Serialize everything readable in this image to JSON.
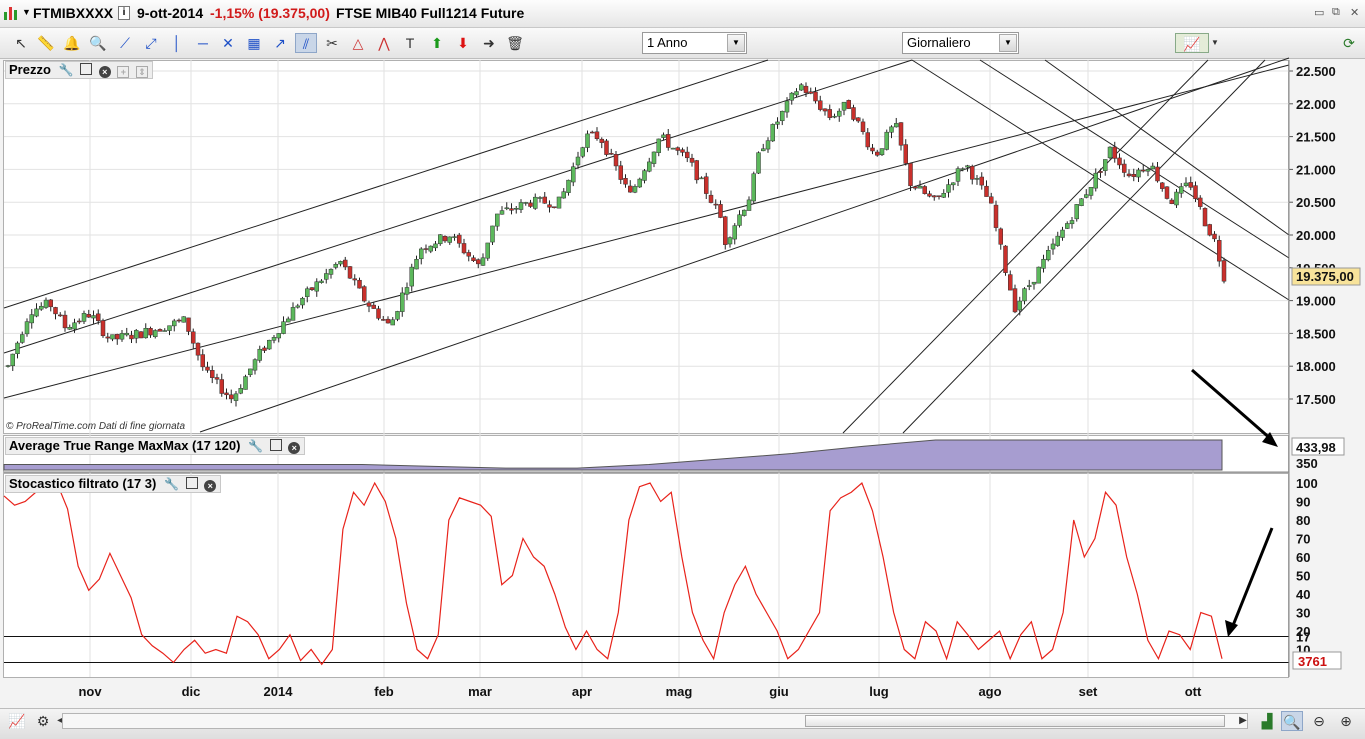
{
  "window": {
    "symbol": "FTMIBXXXX",
    "date": "9-ott-2014",
    "change": "-1,15% (19.375,00)",
    "instrument": "FTSE MIB40 Full1214 Future"
  },
  "toolbar": {
    "period_select": "1 Anno",
    "interval_select": "Giornaliero",
    "tools": [
      "pointer-icon",
      "ruler-icon",
      "alarm-bell-icon",
      "zoom-icon",
      "line-icon",
      "trendline-icon",
      "vertical-line-icon",
      "horizontal-line-icon",
      "fan-icon",
      "grid-icon",
      "arrow-icon",
      "channel-icon",
      "tools-icon",
      "fibonacci-icon",
      "fibonacci-fan-icon",
      "text-icon",
      "arrow-up-icon",
      "arrow-down-icon",
      "arrow-right-icon",
      "trash-icon"
    ]
  },
  "price_panel": {
    "title": "Prezzo",
    "watermark": "© ProRealTime.com  Dati di fine giornata",
    "last_price_label": "19.375,00",
    "y_ticks": [
      "22.500",
      "22.000",
      "21.500",
      "21.000",
      "20.500",
      "20.000",
      "19.500",
      "19.000",
      "18.500",
      "18.000",
      "17.500"
    ]
  },
  "atr_panel": {
    "title": "Average True Range MaxMax (17 120)",
    "last_value_label": "433,98",
    "y_ticks": [
      "350"
    ]
  },
  "stoch_panel": {
    "title": "Stocastico filtrato (17 3)",
    "last_value_label": "3761",
    "y_ticks": [
      "100",
      "90",
      "80",
      "70",
      "60",
      "50",
      "40",
      "30",
      "20",
      "17",
      "10",
      "3"
    ]
  },
  "x_axis": {
    "labels": [
      "nov",
      "dic",
      "2014",
      "feb",
      "mar",
      "apr",
      "mag",
      "giu",
      "lug",
      "ago",
      "set",
      "ott"
    ]
  },
  "colors": {
    "bull": "#5cb85c",
    "bear": "#c9302c",
    "stoch_line": "#e8231b",
    "atr_fill": "#a79dd0",
    "label_bg": "#f8e39a"
  },
  "chart_data": [
    {
      "type": "line",
      "title": "Prezzo",
      "description_series": "daily candlesticks FTMIBXXXX",
      "x": [
        "2013-10-15",
        "2013-11-01",
        "2013-12-01",
        "2014-01-01",
        "2014-02-01",
        "2014-03-01",
        "2014-04-01",
        "2014-05-01",
        "2014-06-01",
        "2014-07-01",
        "2014-08-01",
        "2014-09-01",
        "2014-10-01",
        "2014-10-09"
      ],
      "series": [
        {
          "values": [
            18000,
            18800,
            18500,
            18600,
            19500,
            20000,
            21500,
            21000,
            22300,
            21500,
            19000,
            21000,
            20200,
            19375
          ]
        }
      ],
      "ylim": [
        17000,
        22700
      ],
      "last_value": 19375.0
    },
    {
      "type": "area",
      "title": "Average True Range MaxMax (17 120)",
      "series": [
        {
          "name": "ATR",
          "values": [
            300,
            300,
            300,
            300,
            300,
            300,
            290,
            280,
            280,
            300,
            330,
            360,
            400,
            434,
            434,
            434,
            434,
            434
          ]
        }
      ],
      "last_value": 433.98
    },
    {
      "type": "line",
      "title": "Stocastico filtrato (17 3)",
      "ylim": [
        0,
        100
      ],
      "series": [
        {
          "name": "Stocastico",
          "values": [
            93,
            88,
            90,
            95,
            98,
            100,
            86,
            55,
            42,
            48,
            62,
            50,
            38,
            18,
            12,
            8,
            3,
            10,
            15,
            8,
            10,
            8,
            28,
            25,
            18,
            5,
            10,
            18,
            4,
            10,
            2,
            10,
            75,
            95,
            88,
            100,
            90,
            70,
            35,
            10,
            5,
            18,
            80,
            92,
            90,
            88,
            82,
            45,
            50,
            70,
            60,
            55,
            40,
            22,
            10,
            20,
            10,
            5,
            30,
            80,
            98,
            100,
            90,
            95,
            60,
            30,
            15,
            5,
            30,
            45,
            55,
            40,
            30,
            20,
            5,
            10,
            20,
            30,
            85,
            92,
            95,
            100,
            85,
            60,
            30,
            10,
            5,
            25,
            20,
            5,
            25,
            18,
            10,
            15,
            20,
            5,
            18,
            25,
            5,
            10,
            30,
            80,
            60,
            70,
            95,
            88,
            60,
            40,
            15,
            5,
            20,
            18,
            10,
            30,
            28,
            5
          ]
        }
      ],
      "reference_lines": [
        17,
        3
      ],
      "last_value": 3.761
    }
  ]
}
